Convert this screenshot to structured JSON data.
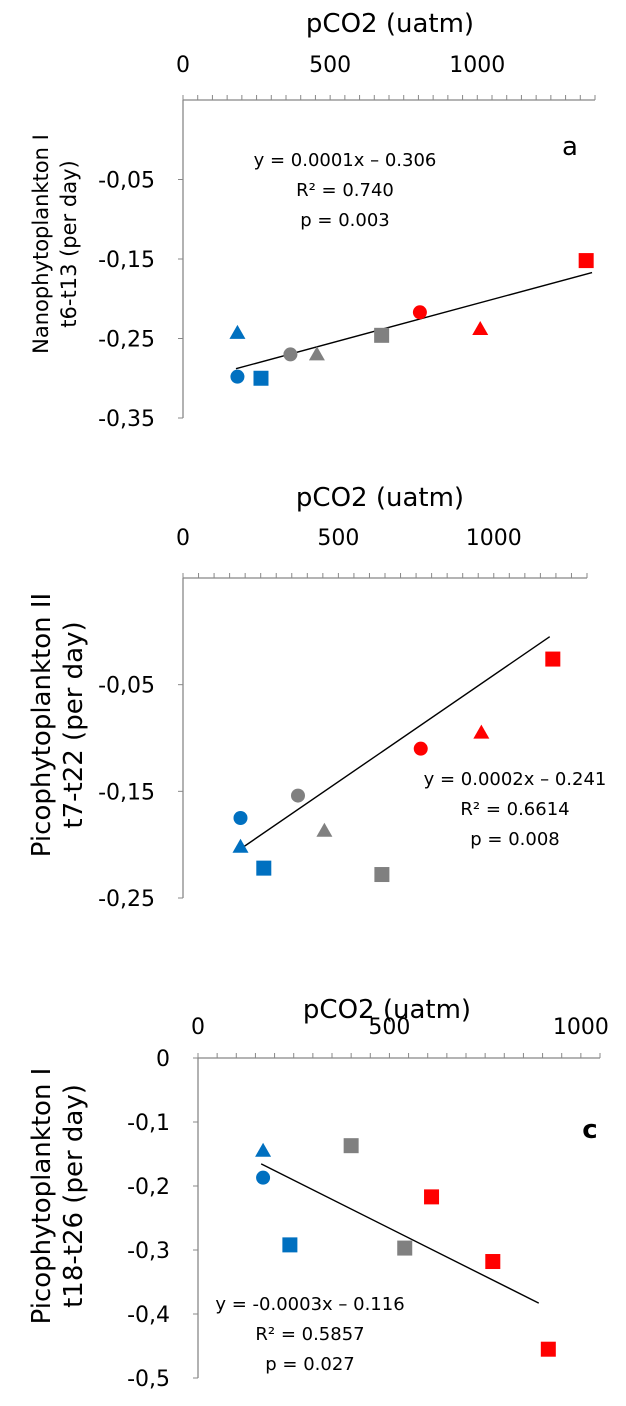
{
  "colors": {
    "blue": "#0070C0",
    "grey": "#808080",
    "red": "#FF0000",
    "axis": "#888888",
    "line": "#000000"
  },
  "chart_data": [
    {
      "type": "scatter",
      "panel_label": "a",
      "xlabel": "pCO2 (uatm)",
      "ylabel_line1": "Nanophytoplankton I",
      "ylabel_line2": "t6-t13 (per day)",
      "xlim": [
        0,
        1400
      ],
      "ylim": [
        -0.35,
        0.05
      ],
      "xticks": [
        "0",
        "500",
        "1000"
      ],
      "yticks": [
        "-0,05",
        "-0,15",
        "-0,25",
        "-0,35"
      ],
      "ytick_values": [
        -0.05,
        -0.15,
        -0.25,
        -0.35
      ],
      "equation": "y = 0.0001x – 0.306",
      "r2": "R² = 0.740",
      "p": "p = 0.003",
      "trendline": {
        "slope": 0.0001,
        "intercept": -0.306,
        "x_range": [
          180,
          1390
        ]
      },
      "points": [
        {
          "x": 185,
          "y": -0.243,
          "marker": "triangle",
          "color": "blue"
        },
        {
          "x": 185,
          "y": -0.298,
          "marker": "circle",
          "color": "blue"
        },
        {
          "x": 265,
          "y": -0.3,
          "marker": "square",
          "color": "blue"
        },
        {
          "x": 365,
          "y": -0.27,
          "marker": "circle",
          "color": "grey"
        },
        {
          "x": 455,
          "y": -0.27,
          "marker": "triangle",
          "color": "grey"
        },
        {
          "x": 675,
          "y": -0.246,
          "marker": "square",
          "color": "grey"
        },
        {
          "x": 805,
          "y": -0.217,
          "marker": "circle",
          "color": "red"
        },
        {
          "x": 1010,
          "y": -0.238,
          "marker": "triangle",
          "color": "red"
        },
        {
          "x": 1370,
          "y": -0.152,
          "marker": "square",
          "color": "red"
        }
      ]
    },
    {
      "type": "scatter",
      "panel_label": "",
      "xlabel": "pCO2 (uatm)",
      "ylabel_line1": "Picophytoplankton II",
      "ylabel_line2": "t7-t22 (per day)",
      "xlim": [
        0,
        1300
      ],
      "ylim": [
        -0.25,
        0.05
      ],
      "xticks": [
        "0",
        "500",
        "1000"
      ],
      "yticks": [
        "-0,05",
        "-0,15",
        "-0,25"
      ],
      "ytick_values": [
        -0.05,
        -0.15,
        -0.25
      ],
      "equation": "y = 0.0002x – 0.241",
      "r2": "R² = 0.6614",
      "p": "p = 0.008",
      "trendline": {
        "slope": 0.0002,
        "intercept": -0.241,
        "x_range": [
          180,
          1180
        ]
      },
      "points": [
        {
          "x": 185,
          "y": -0.175,
          "marker": "circle",
          "color": "blue"
        },
        {
          "x": 185,
          "y": -0.202,
          "marker": "triangle",
          "color": "blue"
        },
        {
          "x": 260,
          "y": -0.222,
          "marker": "square",
          "color": "blue"
        },
        {
          "x": 370,
          "y": -0.154,
          "marker": "circle",
          "color": "grey"
        },
        {
          "x": 455,
          "y": -0.187,
          "marker": "triangle",
          "color": "grey"
        },
        {
          "x": 640,
          "y": -0.228,
          "marker": "square",
          "color": "grey"
        },
        {
          "x": 765,
          "y": -0.11,
          "marker": "circle",
          "color": "red"
        },
        {
          "x": 960,
          "y": -0.095,
          "marker": "triangle",
          "color": "red"
        },
        {
          "x": 1190,
          "y": -0.026,
          "marker": "square",
          "color": "red"
        }
      ]
    },
    {
      "type": "scatter",
      "panel_label": "c",
      "xlabel": "pCO2 (uatm)",
      "ylabel_line1": "Picophytoplankton I",
      "ylabel_line2": "t18-t26 (per day)",
      "xlim": [
        0,
        1050
      ],
      "ylim": [
        -0.5,
        0
      ],
      "xticks": [
        "0",
        "500",
        "1000"
      ],
      "yticks": [
        "0",
        "-0,1",
        "-0,2",
        "-0,3",
        "-0,4",
        "-0,5"
      ],
      "ytick_values": [
        0,
        -0.1,
        -0.2,
        -0.3,
        -0.4,
        -0.5
      ],
      "equation": "y = -0.0003x – 0.116",
      "r2": "R² = 0.5857",
      "p": "p = 0.027",
      "trendline": {
        "slope": -0.0003,
        "intercept": -0.116,
        "x_range": [
          165,
          890
        ]
      },
      "points": [
        {
          "x": 170,
          "y": -0.145,
          "marker": "triangle",
          "color": "blue"
        },
        {
          "x": 170,
          "y": -0.187,
          "marker": "circle",
          "color": "blue"
        },
        {
          "x": 240,
          "y": -0.292,
          "marker": "square",
          "color": "blue"
        },
        {
          "x": 400,
          "y": -0.137,
          "marker": "square",
          "color": "grey"
        },
        {
          "x": 540,
          "y": -0.297,
          "marker": "square",
          "color": "grey"
        },
        {
          "x": 610,
          "y": -0.217,
          "marker": "square",
          "color": "red"
        },
        {
          "x": 770,
          "y": -0.318,
          "marker": "square",
          "color": "red"
        },
        {
          "x": 915,
          "y": -0.455,
          "marker": "square",
          "color": "red"
        }
      ]
    }
  ]
}
